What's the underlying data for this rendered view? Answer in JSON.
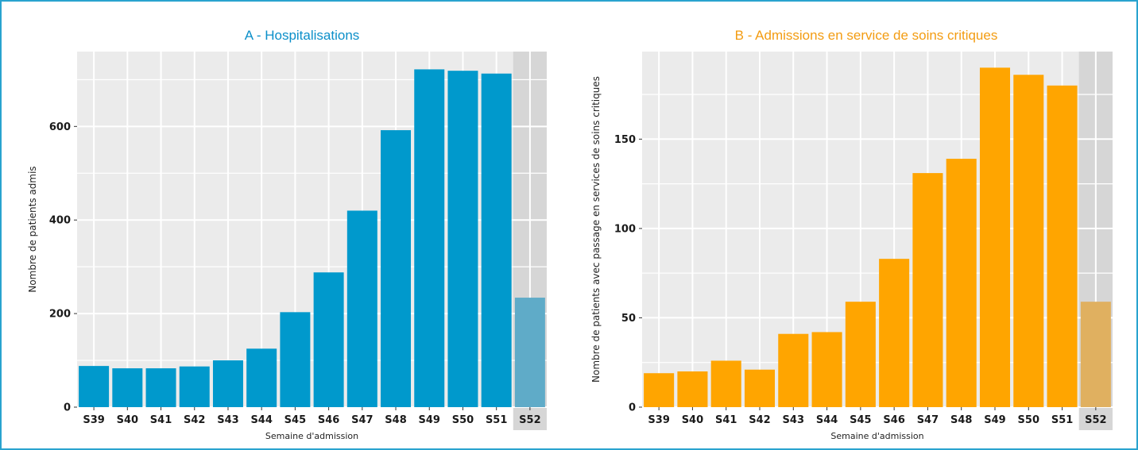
{
  "colors": {
    "frame_border": "#29a3cf",
    "panel_bg": "#ebebeb",
    "grid": "#ffffff",
    "partial_bg": "#d6d6d6",
    "partial_label": "#7a7a7a"
  },
  "chart_data": [
    {
      "id": "A",
      "type": "bar",
      "title": "A - Hospitalisations",
      "title_color": "#0b8fc9",
      "xlabel": "Semaine d'admission",
      "ylabel": "Nombre de patients admis",
      "categories": [
        "S39",
        "S40",
        "S41",
        "S42",
        "S43",
        "S44",
        "S45",
        "S46",
        "S47",
        "S48",
        "S49",
        "S50",
        "S51",
        "S52"
      ],
      "values": [
        88,
        83,
        83,
        87,
        100,
        125,
        203,
        288,
        420,
        592,
        722,
        719,
        713,
        234
      ],
      "yticks": [
        0,
        200,
        400,
        600
      ],
      "ylim": [
        0,
        760
      ],
      "bar_color": "#0099cc",
      "partial_bar_color": "#5fabc8",
      "partial_categories": [
        "S52"
      ],
      "grid": true
    },
    {
      "id": "B",
      "type": "bar",
      "title": "B - Admissions en service de soins critiques",
      "title_color": "#f39c12",
      "xlabel": "Semaine d'admission",
      "ylabel": "Nombre de patients avec passage en services de soins critiques",
      "categories": [
        "S39",
        "S40",
        "S41",
        "S42",
        "S43",
        "S44",
        "S45",
        "S46",
        "S47",
        "S48",
        "S49",
        "S50",
        "S51",
        "S52"
      ],
      "values": [
        19,
        20,
        26,
        21,
        41,
        42,
        59,
        83,
        131,
        139,
        190,
        186,
        180,
        59
      ],
      "yticks": [
        0,
        50,
        100,
        150
      ],
      "ylim": [
        0,
        199
      ],
      "bar_color": "#ffa500",
      "partial_bar_color": "#e0b060",
      "partial_categories": [
        "S52"
      ],
      "grid": true
    }
  ]
}
